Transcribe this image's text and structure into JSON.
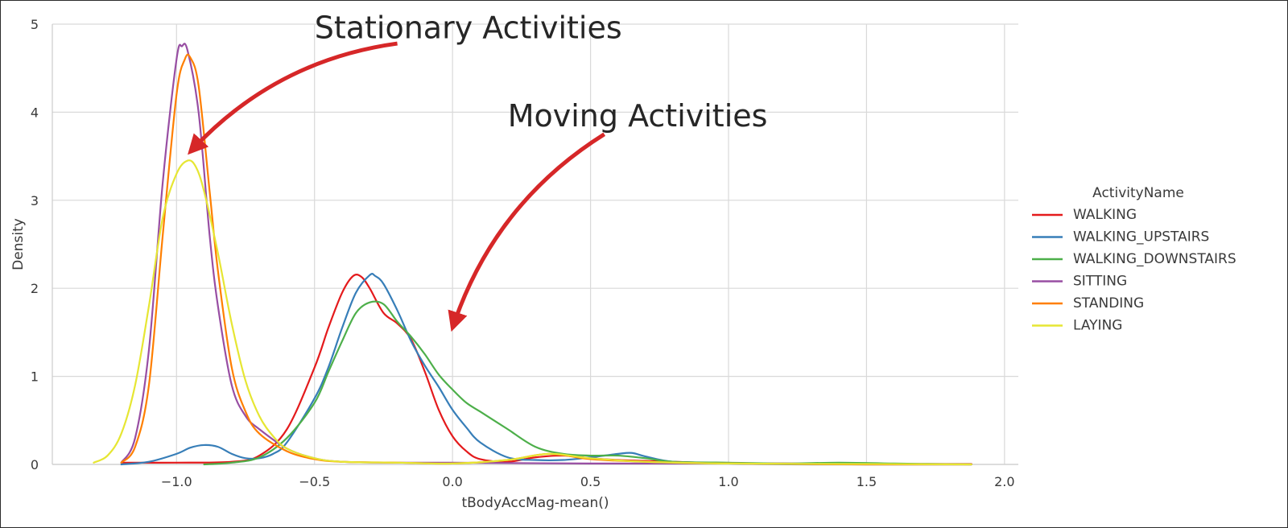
{
  "chart_data": {
    "type": "line",
    "xlabel": "tBodyAccMag-mean()",
    "ylabel": "Density",
    "xlim": [
      -1.45,
      2.05
    ],
    "ylim": [
      0,
      5
    ],
    "xticks": [
      -1.0,
      -0.5,
      0.0,
      0.5,
      1.0,
      1.5,
      2.0
    ],
    "xtick_labels": [
      "−1.0",
      "−0.5",
      "0.0",
      "0.5",
      "1.0",
      "1.5",
      "2.0"
    ],
    "yticks": [
      0,
      1,
      2,
      3,
      4,
      5
    ],
    "ytick_labels": [
      "0",
      "1",
      "2",
      "3",
      "4",
      "5"
    ],
    "grid": true,
    "legend": {
      "title": "ActivityName",
      "placement": "right"
    },
    "annotations": [
      {
        "text": "Stationary Activities",
        "text_at": [
          -0.5,
          4.95
        ],
        "arrow_from": [
          -0.2,
          4.78
        ],
        "arrow_to": [
          -0.95,
          3.55
        ],
        "color": "#d62728"
      },
      {
        "text": "Moving Activities",
        "text_at": [
          0.2,
          3.95
        ],
        "arrow_from": [
          0.55,
          3.75
        ],
        "arrow_to": [
          0.0,
          1.55
        ],
        "color": "#d62728"
      }
    ],
    "series": [
      {
        "name": "WALKING",
        "color": "#e41a1c",
        "x": [
          -1.2,
          -1.0,
          -0.8,
          -0.7,
          -0.6,
          -0.5,
          -0.45,
          -0.4,
          -0.36,
          -0.33,
          -0.3,
          -0.25,
          -0.2,
          -0.15,
          -0.1,
          -0.05,
          0.0,
          0.05,
          0.1,
          0.2,
          0.3,
          0.4,
          0.5,
          0.6,
          0.7,
          0.8,
          0.9,
          1.0,
          1.2,
          1.5,
          1.88
        ],
        "y": [
          0.02,
          0.02,
          0.03,
          0.1,
          0.4,
          1.1,
          1.55,
          1.95,
          2.14,
          2.13,
          2.0,
          1.72,
          1.6,
          1.42,
          1.05,
          0.62,
          0.32,
          0.15,
          0.06,
          0.03,
          0.08,
          0.1,
          0.07,
          0.05,
          0.04,
          0.03,
          0.02,
          0.01,
          0.01,
          0.005,
          0.005
        ]
      },
      {
        "name": "WALKING_UPSTAIRS",
        "color": "#377eb8",
        "x": [
          -1.2,
          -1.1,
          -1.0,
          -0.95,
          -0.9,
          -0.85,
          -0.8,
          -0.75,
          -0.7,
          -0.65,
          -0.6,
          -0.5,
          -0.45,
          -0.4,
          -0.35,
          -0.3,
          -0.28,
          -0.25,
          -0.2,
          -0.15,
          -0.1,
          -0.05,
          0.0,
          0.05,
          0.1,
          0.2,
          0.3,
          0.4,
          0.5,
          0.6,
          0.65,
          0.7,
          0.8,
          1.0,
          1.3,
          1.88
        ],
        "y": [
          0.0,
          0.03,
          0.12,
          0.19,
          0.22,
          0.2,
          0.12,
          0.07,
          0.07,
          0.12,
          0.25,
          0.75,
          1.1,
          1.55,
          1.95,
          2.15,
          2.14,
          2.05,
          1.75,
          1.4,
          1.12,
          0.88,
          0.62,
          0.42,
          0.25,
          0.08,
          0.05,
          0.05,
          0.08,
          0.12,
          0.13,
          0.09,
          0.03,
          0.01,
          0.0,
          0.0
        ]
      },
      {
        "name": "WALKING_DOWNSTAIRS",
        "color": "#4daf4a",
        "x": [
          -0.9,
          -0.8,
          -0.7,
          -0.6,
          -0.5,
          -0.45,
          -0.4,
          -0.35,
          -0.3,
          -0.25,
          -0.2,
          -0.15,
          -0.1,
          -0.05,
          0.0,
          0.05,
          0.1,
          0.15,
          0.2,
          0.3,
          0.4,
          0.5,
          0.6,
          0.7,
          0.8,
          1.0,
          1.2,
          1.4,
          1.6,
          1.88
        ],
        "y": [
          0.0,
          0.02,
          0.08,
          0.3,
          0.7,
          1.05,
          1.4,
          1.72,
          1.84,
          1.82,
          1.62,
          1.45,
          1.25,
          1.02,
          0.85,
          0.7,
          0.6,
          0.5,
          0.4,
          0.2,
          0.12,
          0.1,
          0.1,
          0.07,
          0.03,
          0.02,
          0.01,
          0.02,
          0.01,
          0.0
        ]
      },
      {
        "name": "SITTING",
        "color": "#984ea3",
        "x": [
          -1.2,
          -1.15,
          -1.1,
          -1.05,
          -1.0,
          -0.98,
          -0.96,
          -0.92,
          -0.88,
          -0.85,
          -0.8,
          -0.75,
          -0.7,
          -0.6,
          -0.5,
          -0.4,
          -0.2,
          0.0,
          0.5,
          1.0,
          1.5,
          1.88
        ],
        "y": [
          0.02,
          0.3,
          1.3,
          3.2,
          4.6,
          4.75,
          4.7,
          4.0,
          2.6,
          1.8,
          0.9,
          0.55,
          0.4,
          0.18,
          0.07,
          0.03,
          0.02,
          0.02,
          0.01,
          0.01,
          0.0,
          0.0
        ]
      },
      {
        "name": "STANDING",
        "color": "#ff7f00",
        "x": [
          -1.2,
          -1.15,
          -1.1,
          -1.05,
          -1.0,
          -0.97,
          -0.95,
          -0.92,
          -0.88,
          -0.85,
          -0.8,
          -0.75,
          -0.7,
          -0.6,
          -0.5,
          -0.4,
          -0.2,
          0.0,
          0.2,
          0.35,
          0.5,
          0.7,
          1.0,
          1.5,
          1.88
        ],
        "y": [
          0.02,
          0.2,
          0.9,
          2.6,
          4.2,
          4.6,
          4.62,
          4.3,
          3.1,
          2.2,
          1.1,
          0.6,
          0.35,
          0.15,
          0.06,
          0.03,
          0.02,
          0.01,
          0.05,
          0.12,
          0.06,
          0.03,
          0.01,
          0.0,
          0.0
        ]
      },
      {
        "name": "LAYING",
        "color": "#e6e633",
        "x": [
          -1.3,
          -1.25,
          -1.2,
          -1.15,
          -1.1,
          -1.05,
          -1.0,
          -0.96,
          -0.93,
          -0.9,
          -0.85,
          -0.8,
          -0.75,
          -0.7,
          -0.65,
          -0.6,
          -0.5,
          -0.4,
          -0.2,
          0.0,
          0.2,
          0.35,
          0.5,
          0.7,
          1.0,
          1.5,
          1.88
        ],
        "y": [
          0.02,
          0.1,
          0.35,
          0.9,
          1.8,
          2.8,
          3.3,
          3.45,
          3.38,
          3.1,
          2.4,
          1.6,
          0.95,
          0.55,
          0.32,
          0.18,
          0.07,
          0.03,
          0.02,
          0.01,
          0.05,
          0.12,
          0.07,
          0.03,
          0.01,
          0.005,
          0.0
        ]
      }
    ]
  }
}
